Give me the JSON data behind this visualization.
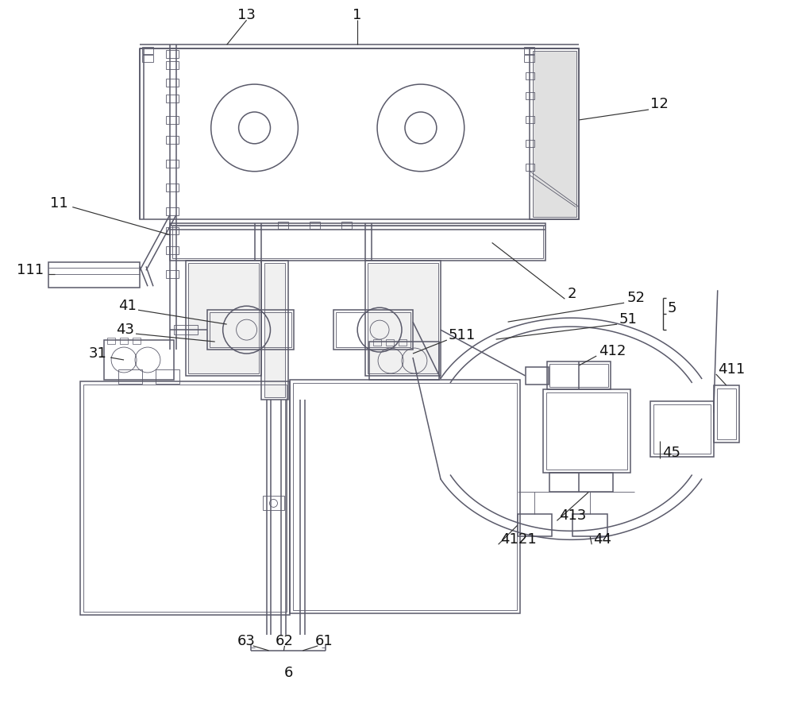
{
  "bg_color": "#ffffff",
  "lc": "#5a5a6a",
  "lc_label": "#111111",
  "lw": 1.1,
  "lw_t": 0.6,
  "fs": 13,
  "fig_w": 10.0,
  "fig_h": 9.05
}
